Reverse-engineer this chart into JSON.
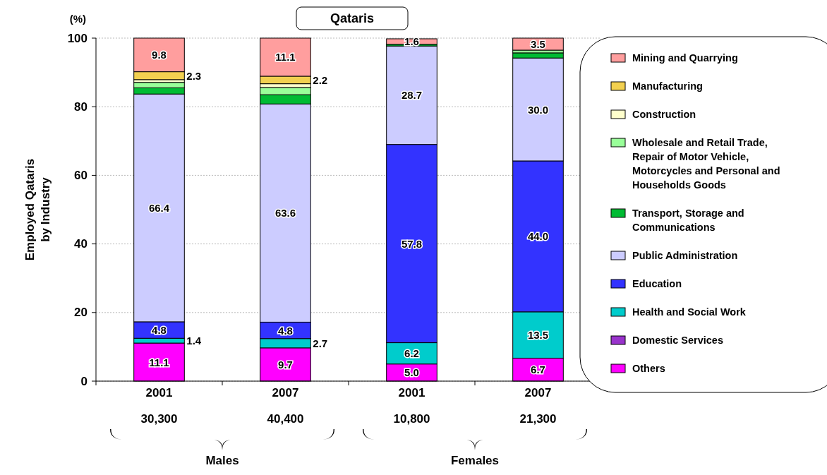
{
  "chart_data": {
    "type": "bar",
    "stacked": true,
    "title": "Qataris",
    "ylabel": "Employed Qataris\nby Industry",
    "categories": [
      "2001\n30,300",
      "2007\n40,400",
      "2001\n10,800",
      "2007\n21,300"
    ],
    "ylim": [
      0,
      100
    ],
    "yticks": [
      0,
      20,
      40,
      60,
      80,
      100
    ],
    "grid": "y",
    "legend": "right",
    "annotations": [
      "(%)",
      "Males",
      "Females"
    ],
    "series": [
      {
        "name": "Others",
        "color": "#ff00ff",
        "values": [
          11.1,
          9.7,
          5.0,
          6.7
        ],
        "value_labels": [
          "11.1",
          "9.7",
          "5.0",
          "6.7"
        ]
      },
      {
        "name": "Domestic Services",
        "color": "#9933cc",
        "values": [
          null,
          null,
          null,
          null
        ]
      },
      {
        "name": "Health and Social Work",
        "color": "#00cccc",
        "values": [
          1.4,
          2.7,
          6.2,
          13.5
        ],
        "value_labels": [
          "1.4",
          "2.7",
          "6.2",
          "13.5"
        ]
      },
      {
        "name": "Education",
        "color": "#3333ff",
        "values": [
          4.8,
          4.8,
          57.8,
          44.0
        ],
        "value_labels": [
          "4.8",
          "4.8",
          "57.8",
          "44.0"
        ]
      },
      {
        "name": "Public Administration",
        "color": "#ccccff",
        "values": [
          66.4,
          63.6,
          28.7,
          30.0
        ],
        "value_labels": [
          "66.4",
          "63.6",
          "28.7",
          "30.0"
        ]
      },
      {
        "name": "Transport, Storage and Communications",
        "color": "#00bb33",
        "values": [
          1.8,
          2.7,
          0.5,
          1.5
        ]
      },
      {
        "name": "Wholesale and Retail Trade, Repair of Motor Vehicle, Motorcycles and Personal and Households Goods",
        "color": "#99ff99",
        "values": [
          1.6,
          2.1,
          null,
          0.8
        ]
      },
      {
        "name": "Construction",
        "color": "#ffffcc",
        "values": [
          0.8,
          1.1,
          null,
          null
        ]
      },
      {
        "name": "Manufacturing",
        "color": "#f2d050",
        "values": [
          2.3,
          2.2,
          null,
          null
        ],
        "value_labels": [
          "2.3",
          "2.2",
          null,
          null
        ]
      },
      {
        "name": "Mining and Quarrying",
        "color": "#ff9e9e",
        "values": [
          9.8,
          11.1,
          1.6,
          3.5
        ],
        "value_labels": [
          "9.8",
          "11.1",
          "1.6",
          "3.5"
        ]
      }
    ]
  }
}
